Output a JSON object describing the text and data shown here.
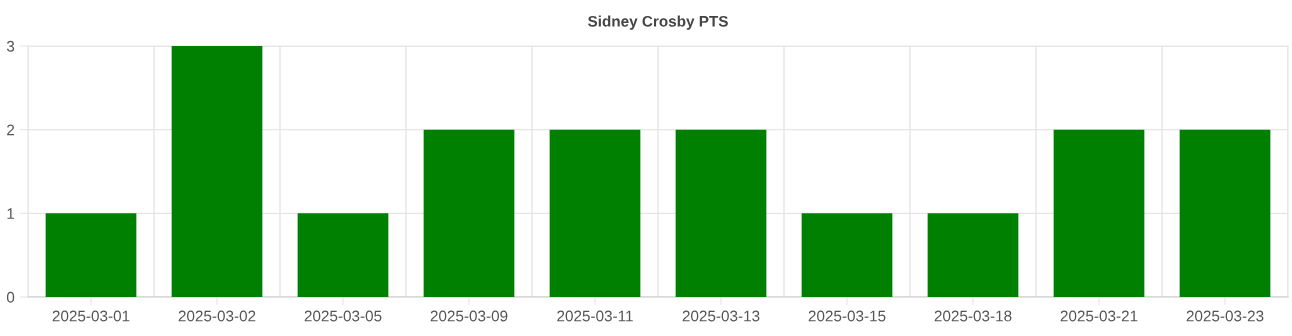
{
  "chart_data": {
    "type": "bar",
    "title": "Sidney Crosby PTS",
    "categories": [
      "2025-03-01",
      "2025-03-02",
      "2025-03-05",
      "2025-03-09",
      "2025-03-11",
      "2025-03-13",
      "2025-03-15",
      "2025-03-18",
      "2025-03-21",
      "2025-03-23"
    ],
    "values": [
      1,
      3,
      1,
      2,
      2,
      2,
      1,
      1,
      2,
      2
    ],
    "color": "#008000",
    "ylim": [
      0,
      3
    ],
    "yticks": [
      0,
      1,
      2,
      3
    ],
    "grid": true
  }
}
